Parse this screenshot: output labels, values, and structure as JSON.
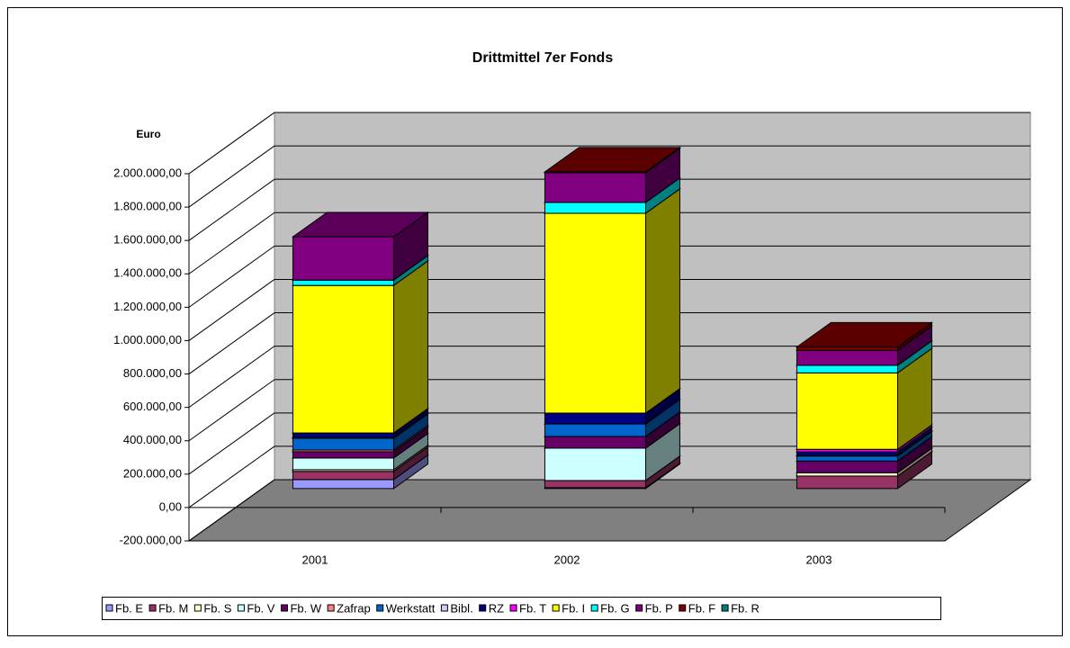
{
  "chart_data": {
    "type": "bar3d_stacked",
    "title": "Drittmittel 7er Fonds",
    "y_label": "Euro",
    "categories": [
      "2001",
      "2002",
      "2003"
    ],
    "ylim": [
      -200000,
      2000000
    ],
    "yticks": [
      {
        "value": -200000,
        "label": "-200.000,00"
      },
      {
        "value": 0,
        "label": "0,00"
      },
      {
        "value": 200000,
        "label": "200.000,00"
      },
      {
        "value": 400000,
        "label": "400.000,00"
      },
      {
        "value": 600000,
        "label": "600.000,00"
      },
      {
        "value": 800000,
        "label": "800.000,00"
      },
      {
        "value": 1000000,
        "label": "1.000.000,00"
      },
      {
        "value": 1200000,
        "label": "1.200.000,00"
      },
      {
        "value": 1400000,
        "label": "1.400.000,00"
      },
      {
        "value": 1600000,
        "label": "1.600.000,00"
      },
      {
        "value": 1800000,
        "label": "1.800.000,00"
      },
      {
        "value": 2000000,
        "label": "2.000.000,00"
      }
    ],
    "grid": true,
    "legend": "bottom",
    "series": [
      {
        "name": "Fb. E",
        "color": "#9999ff",
        "values": [
          54000,
          5000,
          0
        ]
      },
      {
        "name": "Fb. M",
        "color": "#993366",
        "values": [
          49000,
          43000,
          75000
        ]
      },
      {
        "name": "Fb. S",
        "color": "#ffffcc",
        "values": [
          10000,
          0,
          20000
        ]
      },
      {
        "name": "Fb. V",
        "color": "#ccffff",
        "values": [
          70000,
          194000,
          0
        ]
      },
      {
        "name": "Fb. W",
        "color": "#660066",
        "values": [
          38000,
          70000,
          70000
        ]
      },
      {
        "name": "Zafrap",
        "color": "#ff8080",
        "values": [
          10000,
          0,
          0
        ]
      },
      {
        "name": "Werkstatt",
        "color": "#0066cc",
        "values": [
          70000,
          75000,
          30000
        ]
      },
      {
        "name": "Bibl.",
        "color": "#ccccff",
        "values": [
          5000,
          0,
          5000
        ]
      },
      {
        "name": "RZ",
        "color": "#000080",
        "values": [
          27000,
          65000,
          20000
        ]
      },
      {
        "name": "Fb. T",
        "color": "#ff00ff",
        "values": [
          0,
          0,
          15000
        ]
      },
      {
        "name": "Fb. I",
        "color": "#ffff00",
        "values": [
          884000,
          1197000,
          458000
        ]
      },
      {
        "name": "Fb. G",
        "color": "#00ffff",
        "values": [
          32000,
          65000,
          45000
        ]
      },
      {
        "name": "Fb. P",
        "color": "#800080",
        "values": [
          259000,
          178000,
          90000
        ]
      },
      {
        "name": "Fb. F",
        "color": "#800000",
        "values": [
          0,
          5000,
          20000
        ]
      },
      {
        "name": "Fb. R",
        "color": "#008080",
        "values": [
          0,
          0,
          0
        ]
      }
    ]
  }
}
